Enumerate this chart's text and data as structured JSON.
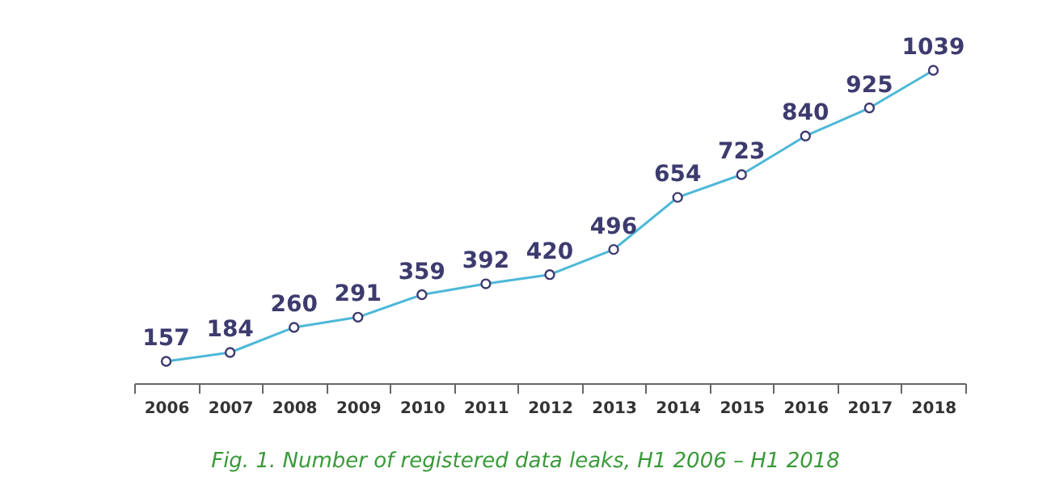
{
  "chart_data": {
    "type": "line",
    "categories": [
      "2006",
      "2007",
      "2008",
      "2009",
      "2010",
      "2011",
      "2012",
      "2013",
      "2014",
      "2015",
      "2016",
      "2017",
      "2018"
    ],
    "series": [
      {
        "color": "#4db8d8",
        "values": [
          157,
          184,
          260,
          291,
          359,
          392,
          420,
          496,
          654,
          723,
          840,
          925,
          1039
        ]
      }
    ],
    "data_labels": true,
    "marker": "circle",
    "grid": false,
    "tick_labels": "x",
    "annotations": [
      "Fig. 1. Number of registered data leaks, H1 2006 – H1 2018"
    ]
  }
}
